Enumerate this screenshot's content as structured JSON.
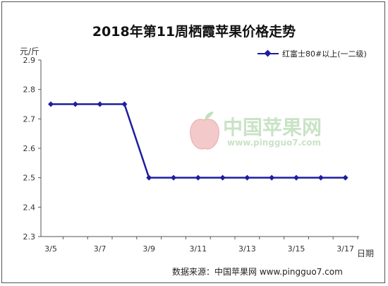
{
  "chart_data": {
    "type": "line",
    "title": "2018年第11周栖霞苹果价格走势",
    "ylabel": "元/斤",
    "xlabel": "日期",
    "ylim": [
      2.3,
      2.9
    ],
    "yticks": [
      "2.9",
      "2.8",
      "2.7",
      "2.6",
      "2.5",
      "2.4",
      "2.3"
    ],
    "x_tick_labels": [
      "3/5",
      "3/7",
      "3/9",
      "3/11",
      "3/13",
      "3/15",
      "3/17"
    ],
    "categories": [
      "3/5",
      "3/6",
      "3/7",
      "3/8",
      "3/9",
      "3/10",
      "3/11",
      "3/12",
      "3/13",
      "3/14",
      "3/15",
      "3/16",
      "3/17"
    ],
    "series": [
      {
        "name": "红富士80#以上(一二级)",
        "values": [
          2.75,
          2.75,
          2.75,
          2.75,
          2.5,
          2.5,
          2.5,
          2.5,
          2.5,
          2.5,
          2.5,
          2.5,
          2.5
        ],
        "color": "#1e1ea0"
      }
    ],
    "legend_position": "top-right",
    "grid": false
  },
  "watermark": {
    "name": "中国苹果网",
    "url": "www.pingguo7.com",
    "color": "#c9e3c6"
  },
  "source_text": "数据来源：中国苹果网 www.pingguo7.com"
}
